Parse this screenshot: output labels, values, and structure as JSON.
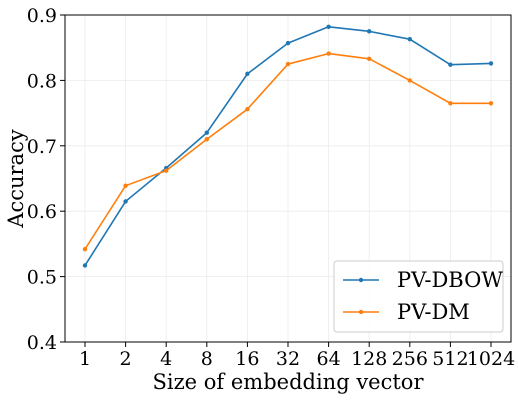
{
  "chart_data": {
    "type": "line",
    "xlabel": "Size of embedding vector",
    "ylabel": "Accuracy",
    "x": [
      "1",
      "2",
      "4",
      "8",
      "16",
      "32",
      "64",
      "128",
      "256",
      "512",
      "1024"
    ],
    "ylim": [
      0.4,
      0.9
    ],
    "yticks": [
      "0.4",
      "0.5",
      "0.6",
      "0.7",
      "0.8",
      "0.9"
    ],
    "grid": true,
    "legend_position": "bottom-right",
    "series": [
      {
        "name": "PV-DBOW",
        "color": "#1f77b4",
        "values": [
          0.517,
          0.615,
          0.666,
          0.72,
          0.81,
          0.857,
          0.882,
          0.875,
          0.863,
          0.824,
          0.826
        ]
      },
      {
        "name": "PV-DM",
        "color": "#ff7f0e",
        "values": [
          0.542,
          0.639,
          0.662,
          0.71,
          0.756,
          0.825,
          0.841,
          0.833,
          0.8,
          0.765,
          0.765
        ]
      }
    ]
  }
}
